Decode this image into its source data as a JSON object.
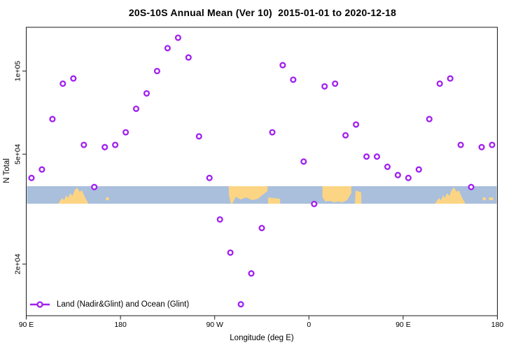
{
  "chart_data": {
    "type": "scatter",
    "title": "20S-10S Annual Mean (Ver 10)  2015-01-01 to 2020-12-18",
    "xlabel": "Longitude (deg E)",
    "ylabel": "N Total",
    "y_scale": "log",
    "grid": false,
    "xlim": [
      90,
      540
    ],
    "ylim": [
      13000,
      144000
    ],
    "x_ticks": [
      {
        "lon": 90,
        "label": "90 E"
      },
      {
        "lon": 180,
        "label": "180"
      },
      {
        "lon": 270,
        "label": "90 W"
      },
      {
        "lon": 360,
        "label": "0"
      },
      {
        "lon": 450,
        "label": "90 E"
      },
      {
        "lon": 540,
        "label": "180"
      }
    ],
    "y_ticks": [
      {
        "value": 100000,
        "label": "1e+05"
      },
      {
        "value": 50000,
        "label": "5e+04"
      },
      {
        "value": 20000,
        "label": "2e+04"
      }
    ],
    "legend_label": "Land (Nadir&Glint) and Ocean (Glint)",
    "legend_position": "bottom-left",
    "marker": {
      "shape": "open-circle",
      "color": "#A020F0"
    },
    "series": [
      {
        "name": "Land (Nadir&Glint) and Ocean (Glint)",
        "points": [
          [
            95,
            41000
          ],
          [
            105,
            44000
          ],
          [
            115,
            67000
          ],
          [
            125,
            90000
          ],
          [
            135,
            94000
          ],
          [
            145,
            54000
          ],
          [
            155,
            38000
          ],
          [
            165,
            53000
          ],
          [
            175,
            54000
          ],
          [
            185,
            60000
          ],
          [
            195,
            73000
          ],
          [
            205,
            83000
          ],
          [
            215,
            100000
          ],
          [
            225,
            121000
          ],
          [
            235,
            132000
          ],
          [
            245,
            112000
          ],
          [
            255,
            58000
          ],
          [
            265,
            41000
          ],
          [
            275,
            29000
          ],
          [
            285,
            22000
          ],
          [
            295,
            14300
          ],
          [
            305,
            18500
          ],
          [
            315,
            27000
          ],
          [
            325,
            60000
          ],
          [
            335,
            105000
          ],
          [
            345,
            93000
          ],
          [
            355,
            47000
          ],
          [
            365,
            33000
          ],
          [
            375,
            88000
          ],
          [
            385,
            90000
          ],
          [
            395,
            58500
          ],
          [
            405,
            64000
          ],
          [
            415,
            49000
          ],
          [
            425,
            49000
          ],
          [
            435,
            45000
          ],
          [
            445,
            42000
          ],
          [
            455,
            41000
          ],
          [
            465,
            44000
          ],
          [
            475,
            67000
          ],
          [
            485,
            90000
          ],
          [
            495,
            94000
          ],
          [
            505,
            54000
          ],
          [
            515,
            38000
          ],
          [
            525,
            53000
          ],
          [
            535,
            54000
          ]
        ]
      }
    ],
    "map_strip": {
      "description": "10S-20S land/ocean band drawn across plot",
      "ocean_color": "#A9BFDC",
      "land_color": "#FCD584",
      "land_segments": [
        {
          "name": "australia",
          "lon": [
            120.5,
            149
          ],
          "profile": "peaks"
        },
        {
          "name": "melanesia-islands",
          "lon": [
            166,
            169
          ],
          "profile": "dot"
        },
        {
          "name": "south-america",
          "lon": [
            283.5,
            320.5
          ],
          "profile": "block"
        },
        {
          "name": "south-america-east",
          "lon": [
            321,
            332.5
          ],
          "profile": "bottom"
        },
        {
          "name": "africa",
          "lon": [
            373,
            400.5
          ],
          "profile": "block-deep"
        },
        {
          "name": "madagascar",
          "lon": [
            404,
            410
          ],
          "profile": "blob"
        },
        {
          "name": "australia-repeat",
          "lon": [
            480.5,
            509
          ],
          "profile": "peaks"
        },
        {
          "name": "melanesia-repeat-1",
          "lon": [
            526,
            529
          ],
          "profile": "dot"
        },
        {
          "name": "melanesia-repeat-2",
          "lon": [
            532,
            536
          ],
          "profile": "dot"
        }
      ]
    }
  }
}
